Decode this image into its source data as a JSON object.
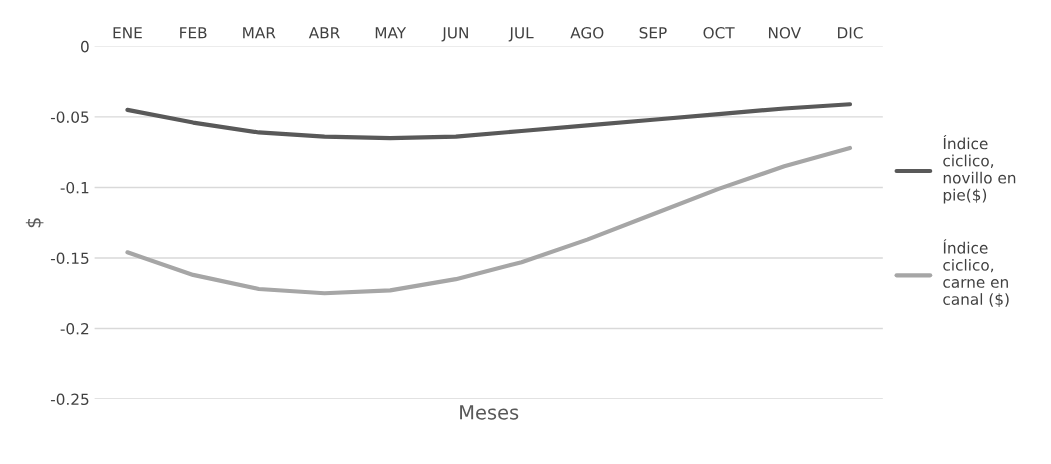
{
  "chart_data": {
    "type": "line",
    "xlabel": "Meses",
    "ylabel": "$",
    "categories": [
      "ENE",
      "FEB",
      "MAR",
      "ABR",
      "MAY",
      "JUN",
      "JUL",
      "AGO",
      "SEP",
      "OCT",
      "NOV",
      "DIC"
    ],
    "series": [
      {
        "name": "Índice ciclico, novillo en pie($)",
        "color": "#595959",
        "values": [
          -0.045,
          -0.054,
          -0.061,
          -0.064,
          -0.065,
          -0.064,
          -0.06,
          -0.056,
          -0.052,
          -0.048,
          -0.044,
          -0.041
        ]
      },
      {
        "name": "Índice ciclico, carne en canal ($)",
        "color": "#a6a6a6",
        "values": [
          -0.146,
          -0.162,
          -0.172,
          -0.175,
          -0.173,
          -0.165,
          -0.153,
          -0.137,
          -0.119,
          -0.101,
          -0.085,
          -0.072
        ]
      }
    ],
    "ylim": [
      -0.25,
      0
    ],
    "yticks": [
      0,
      {
        "value": -0.05,
        "label": "-0.05"
      },
      {
        "value": -0.1,
        "label": "-0.1"
      },
      {
        "value": -0.15,
        "label": "-0.15"
      },
      {
        "value": -0.2,
        "label": "-0.2"
      },
      {
        "value": -0.25,
        "label": "-0.25"
      }
    ],
    "grid": "y",
    "legend": "right",
    "marker": "none",
    "line_style": "solid"
  }
}
